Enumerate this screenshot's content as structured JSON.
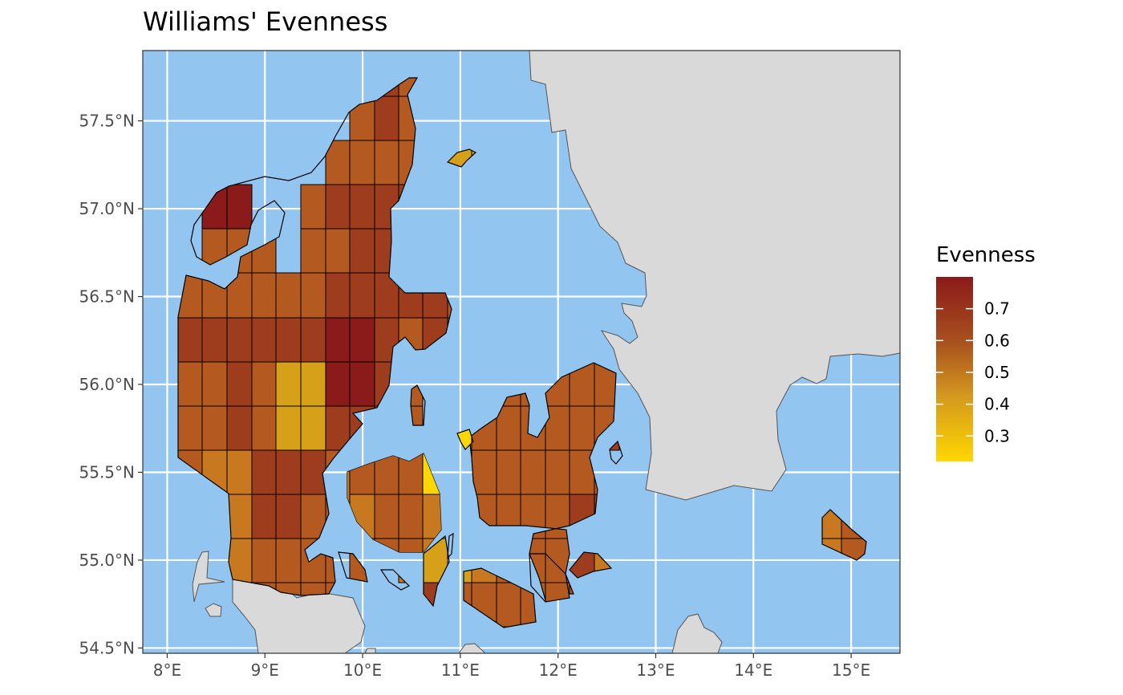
{
  "title": "Williams' Evenness",
  "colors": {
    "sea": "#92c5f0",
    "land": "#d9d9d9",
    "grid": "#ffffff",
    "cell_stroke": "#000000",
    "scale_low": "#ffd700",
    "scale_high": "#8b1a1a"
  },
  "x_axis": {
    "ticks": [
      8,
      9,
      10,
      11,
      12,
      13,
      14,
      15
    ],
    "labels": [
      "8°E",
      "9°E",
      "10°E",
      "11°E",
      "12°E",
      "13°E",
      "14°E",
      "15°E"
    ],
    "range": [
      7.75,
      15.5
    ]
  },
  "y_axis": {
    "ticks": [
      54.5,
      55.0,
      55.5,
      56.0,
      56.5,
      57.0,
      57.5
    ],
    "labels": [
      "54.5°N",
      "55.0°N",
      "55.5°N",
      "56.0°N",
      "56.5°N",
      "57.0°N",
      "57.5°N"
    ],
    "range": [
      54.47,
      57.9
    ]
  },
  "legend": {
    "title": "Evenness",
    "breaks": [
      0.7,
      0.6,
      0.5,
      0.4,
      0.3
    ],
    "labels": [
      "0.7",
      "0.6",
      "0.5",
      "0.4",
      "0.3"
    ],
    "range": [
      0.22,
      0.8
    ]
  }
}
